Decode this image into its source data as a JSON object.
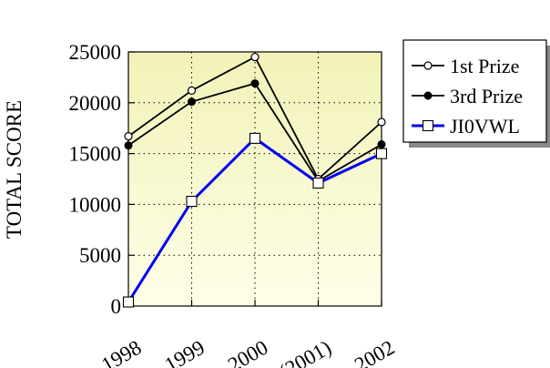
{
  "chart_data": {
    "type": "line",
    "title": "",
    "xlabel": "",
    "ylabel": "TOTAL SCORE",
    "categories": [
      "1998",
      "1999",
      "2000",
      "(2001)",
      "2002"
    ],
    "ylim": [
      0,
      25000
    ],
    "yticks": [
      0,
      5000,
      10000,
      15000,
      20000,
      25000
    ],
    "grid": true,
    "legend_position": "top-right",
    "series": [
      {
        "name": "1st Prize",
        "values": [
          16700,
          21200,
          24500,
          12500,
          18100
        ],
        "color": "#000000",
        "marker": "open-circle"
      },
      {
        "name": "3rd Prize",
        "values": [
          15800,
          20100,
          21900,
          12300,
          15900
        ],
        "color": "#000000",
        "marker": "filled-circle"
      },
      {
        "name": "JI0VWL",
        "values": [
          400,
          10300,
          16500,
          12100,
          15000
        ],
        "color": "#0000ee",
        "marker": "open-square"
      }
    ]
  }
}
